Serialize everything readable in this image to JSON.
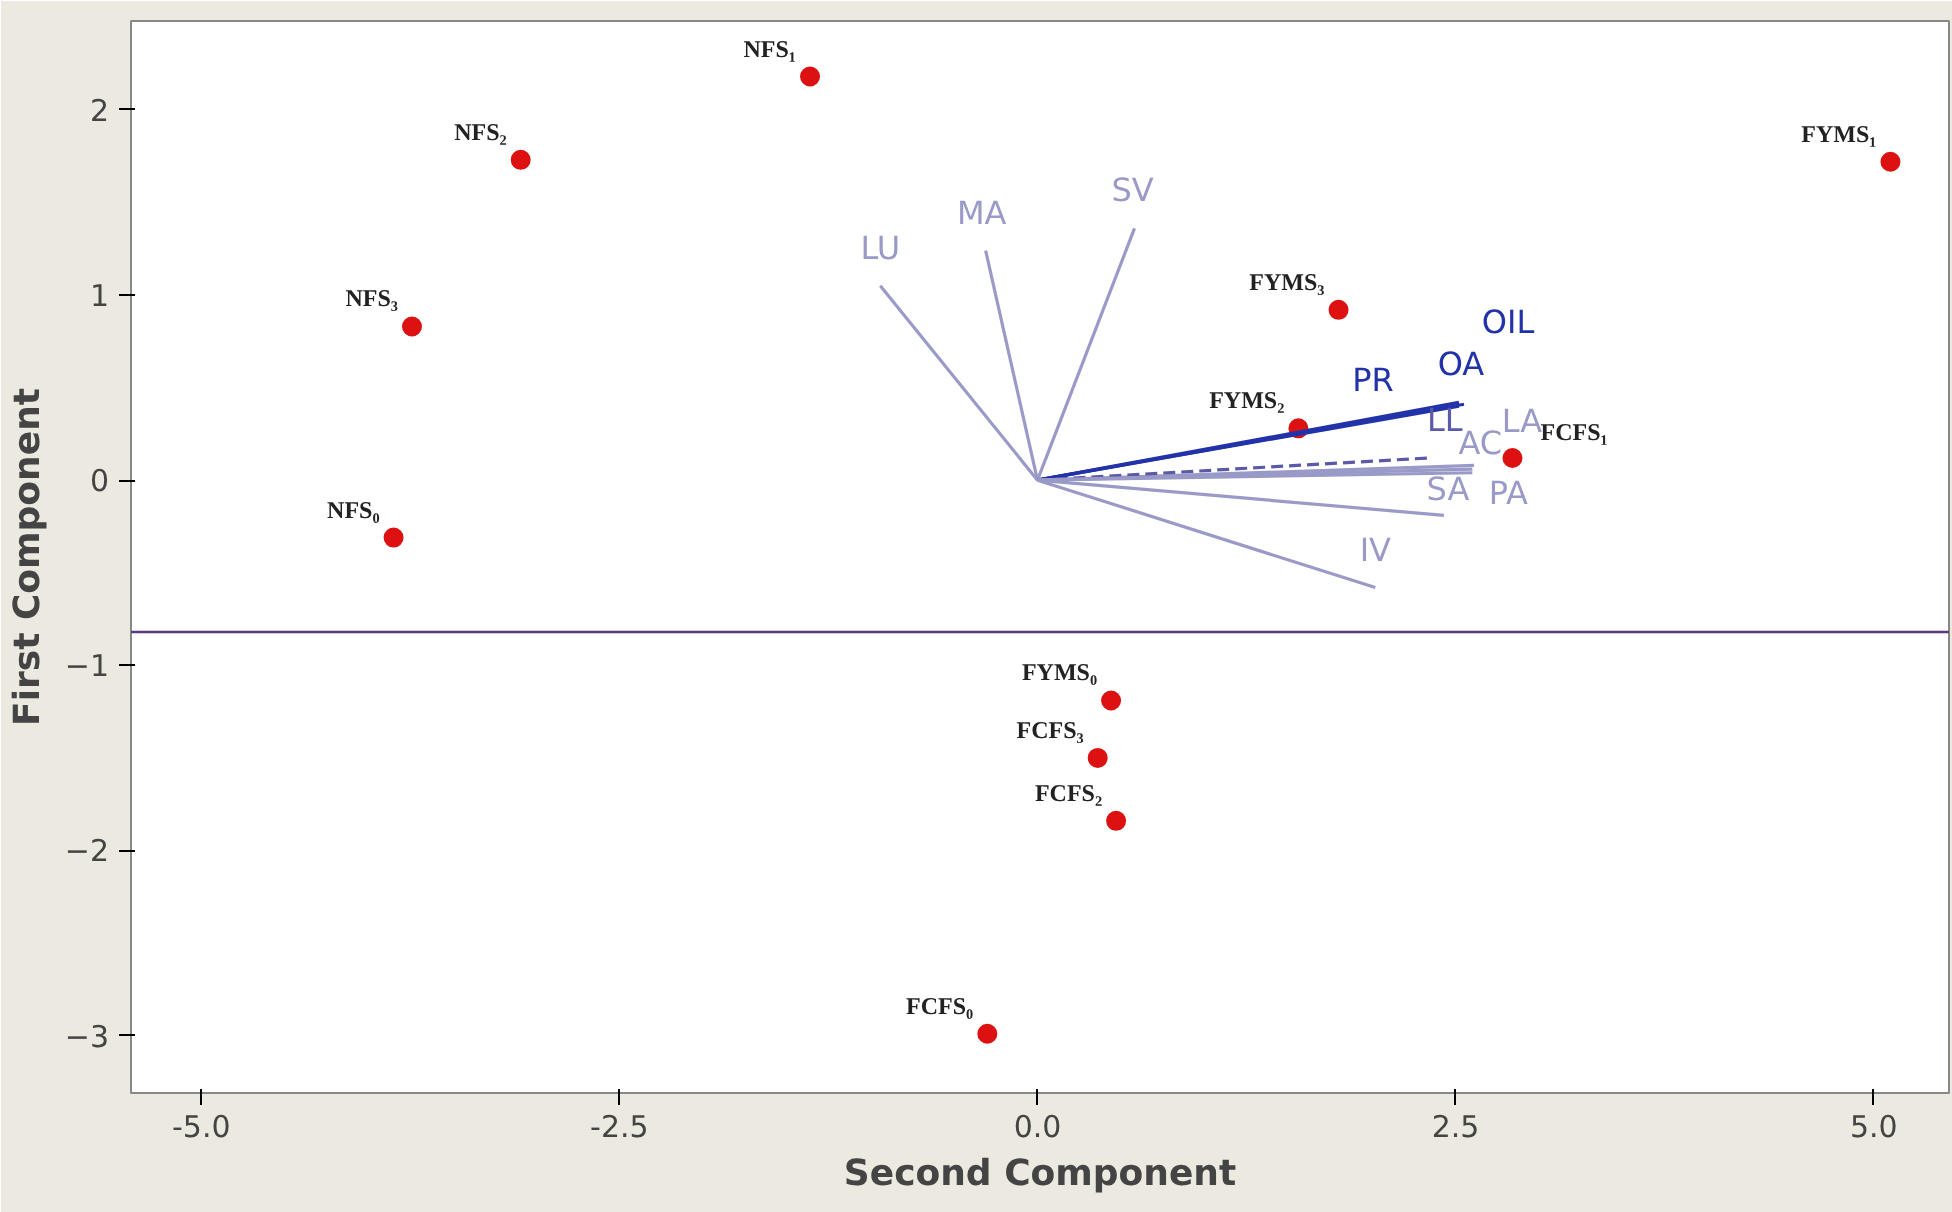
{
  "chart_data": {
    "type": "scatter",
    "xlabel": "Second Component",
    "ylabel": "First Component",
    "xlim": [
      -5.42,
      5.45
    ],
    "ylim": [
      -3.31,
      2.48
    ],
    "xticks": [
      {
        "value": -5,
        "label": "-5.0"
      },
      {
        "value": -2.5,
        "label": "-2.5"
      },
      {
        "value": 0,
        "label": "0.0"
      },
      {
        "value": 2.5,
        "label": "2.5"
      },
      {
        "value": 5,
        "label": "5.0"
      }
    ],
    "yticks": [
      -3,
      -2,
      -1,
      0,
      1,
      2
    ],
    "grid": false,
    "series": [
      {
        "color": "#dd1111",
        "marker": "circle",
        "x": [
          -1.36,
          -3.09,
          -3.74,
          -3.85,
          5.1,
          1.8,
          1.56,
          2.84,
          0.44,
          0.36,
          0.47,
          -0.3
        ],
        "values": [
          2.18,
          1.73,
          0.83,
          -0.31,
          1.72,
          0.92,
          0.28,
          0.12,
          -1.19,
          -1.5,
          -1.84,
          -2.99
        ]
      },
      {
        "type": "line",
        "name": "LU",
        "color": "#9a9ac8",
        "x": [
          0,
          -0.94
        ],
        "values": [
          0,
          1.05
        ]
      },
      {
        "type": "line",
        "name": "MA",
        "color": "#9a9ac8",
        "x": [
          0,
          -0.31
        ],
        "values": [
          0,
          1.24
        ]
      },
      {
        "type": "line",
        "name": "SV",
        "color": "#9a9ac8",
        "x": [
          0,
          0.58
        ],
        "values": [
          0,
          1.36
        ]
      },
      {
        "type": "line",
        "name": "PR",
        "color": "#2233aa",
        "x": [
          0,
          2.52
        ],
        "values": [
          0,
          0.42
        ]
      },
      {
        "type": "line",
        "name": "OA",
        "color": "#2233aa",
        "x": [
          0,
          2.52
        ],
        "values": [
          0,
          0.4
        ]
      },
      {
        "type": "line",
        "name": "OIL",
        "color": "#2233aa",
        "x": [
          0,
          2.55
        ],
        "values": [
          0,
          0.41
        ]
      },
      {
        "type": "line",
        "name": "LA",
        "color": "#9a9ac8",
        "x": [
          0,
          2.61
        ],
        "values": [
          0,
          0.08
        ]
      },
      {
        "type": "line",
        "name": "LL",
        "color": "#5a5aa8",
        "line_style": "dashed",
        "x": [
          0,
          2.34
        ],
        "values": [
          0,
          0.12
        ]
      },
      {
        "type": "line",
        "name": "AC",
        "color": "#9a9ac8",
        "x": [
          0,
          2.6
        ],
        "values": [
          0,
          0.06
        ]
      },
      {
        "type": "line",
        "name": "SA",
        "color": "#9a9ac8",
        "x": [
          0,
          2.43
        ],
        "values": [
          0,
          -0.19
        ]
      },
      {
        "type": "line",
        "name": "PA",
        "color": "#9a9ac8",
        "x": [
          0,
          2.6
        ],
        "values": [
          0,
          0.04
        ]
      },
      {
        "type": "line",
        "name": "IV",
        "color": "#9a9ac8",
        "x": [
          0,
          2.02
        ],
        "values": [
          0,
          -0.58
        ]
      }
    ],
    "ref_lines": [
      {
        "axis": "y",
        "value": -0.82,
        "color": "#5a3a7a"
      }
    ],
    "annotations": [
      {
        "text": "NFS₁",
        "x": -1.36,
        "y": 2.18
      },
      {
        "text": "NFS₂",
        "x": -3.09,
        "y": 1.73
      },
      {
        "text": "NFS₃",
        "x": -3.74,
        "y": 0.83
      },
      {
        "text": "NFS₀",
        "x": -3.85,
        "y": -0.31
      },
      {
        "text": "FYMS₁",
        "x": 5.1,
        "y": 1.72
      },
      {
        "text": "FYMS₃",
        "x": 1.8,
        "y": 0.92
      },
      {
        "text": "FYMS₂",
        "x": 1.56,
        "y": 0.28
      },
      {
        "text": "FCFS₁",
        "x": 2.84,
        "y": 0.12
      },
      {
        "text": "FYMS₀",
        "x": 0.44,
        "y": -1.19
      },
      {
        "text": "FCFS₃",
        "x": 0.36,
        "y": -1.5
      },
      {
        "text": "FCFS₂",
        "x": 0.47,
        "y": -1.84
      },
      {
        "text": "FCFS₀",
        "x": -0.3,
        "y": -2.99
      }
    ]
  }
}
